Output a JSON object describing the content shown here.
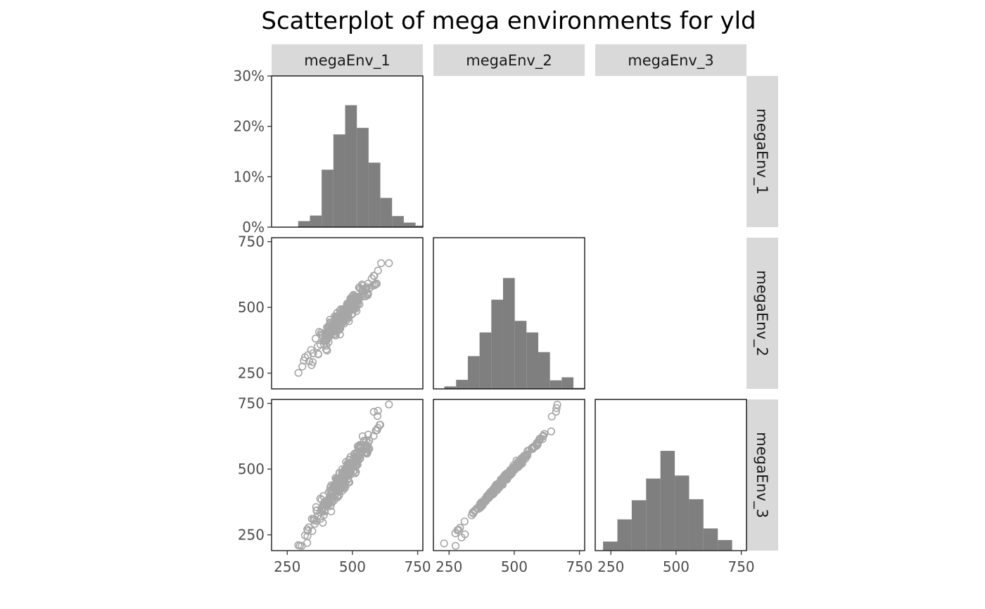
{
  "title": "Scatterplot of mega environments for yld",
  "colors": {
    "bar": "#7f7f7f",
    "point": "#a6a6a6",
    "strip": "#d9d9d9",
    "frame": "#000000"
  },
  "chart_data": {
    "type": "scatter",
    "layout": "pairs-matrix-lower-triangle",
    "variables": [
      "megaEnv_1",
      "megaEnv_2",
      "megaEnv_3"
    ],
    "column_strips": [
      "megaEnv_1",
      "megaEnv_2",
      "megaEnv_3"
    ],
    "row_strips": [
      "megaEnv_1",
      "megaEnv_2",
      "megaEnv_3"
    ],
    "x_ticks": [
      "250",
      "500",
      "750"
    ],
    "y_ticks_value": [
      "250",
      "500",
      "750"
    ],
    "y_ticks_percent": [
      "0%",
      "10%",
      "20%",
      "30%"
    ],
    "xlim": [
      190,
      770
    ],
    "ylim": [
      190,
      765
    ],
    "percent_ylim": [
      0,
      30
    ],
    "grid": false,
    "histograms": [
      {
        "variable": "megaEnv_1",
        "bin_width": 45,
        "bins": [
          {
            "x0": 292,
            "x1": 337,
            "pct": 1.2
          },
          {
            "x0": 337,
            "x1": 382,
            "pct": 2.3
          },
          {
            "x0": 382,
            "x1": 427,
            "pct": 11.4
          },
          {
            "x0": 427,
            "x1": 472,
            "pct": 18.4
          },
          {
            "x0": 472,
            "x1": 517,
            "pct": 24.2
          },
          {
            "x0": 517,
            "x1": 562,
            "pct": 19.7
          },
          {
            "x0": 562,
            "x1": 607,
            "pct": 12.8
          },
          {
            "x0": 607,
            "x1": 652,
            "pct": 5.8
          },
          {
            "x0": 652,
            "x1": 697,
            "pct": 2.2
          },
          {
            "x0": 697,
            "x1": 742,
            "pct": 0.9
          },
          {
            "x0": 742,
            "x1": 787,
            "pct": 0.3
          }
        ]
      },
      {
        "variable": "megaEnv_2",
        "bin_width": 45,
        "bins": [
          {
            "x0": 232,
            "x1": 277,
            "pct": 0.5
          },
          {
            "x0": 277,
            "x1": 322,
            "pct": 1.8
          },
          {
            "x0": 322,
            "x1": 367,
            "pct": 6.5
          },
          {
            "x0": 367,
            "x1": 412,
            "pct": 11.2
          },
          {
            "x0": 412,
            "x1": 457,
            "pct": 17.7
          },
          {
            "x0": 457,
            "x1": 502,
            "pct": 22.0
          },
          {
            "x0": 502,
            "x1": 547,
            "pct": 13.5
          },
          {
            "x0": 547,
            "x1": 592,
            "pct": 11.2
          },
          {
            "x0": 592,
            "x1": 637,
            "pct": 7.3
          },
          {
            "x0": 637,
            "x1": 682,
            "pct": 1.7
          },
          {
            "x0": 682,
            "x1": 727,
            "pct": 2.3
          },
          {
            "x0": 727,
            "x1": 772,
            "pct": 0.2
          }
        ]
      },
      {
        "variable": "megaEnv_3",
        "bin_width": 55,
        "bins": [
          {
            "x0": 220,
            "x1": 275,
            "pct": 1.8
          },
          {
            "x0": 275,
            "x1": 330,
            "pct": 6.2
          },
          {
            "x0": 330,
            "x1": 385,
            "pct": 10.0
          },
          {
            "x0": 385,
            "x1": 440,
            "pct": 14.3
          },
          {
            "x0": 440,
            "x1": 495,
            "pct": 19.8
          },
          {
            "x0": 495,
            "x1": 550,
            "pct": 14.9
          },
          {
            "x0": 550,
            "x1": 605,
            "pct": 10.2
          },
          {
            "x0": 605,
            "x1": 660,
            "pct": 4.4
          },
          {
            "x0": 660,
            "x1": 715,
            "pct": 2.1
          }
        ]
      }
    ],
    "scatter_panels": [
      {
        "x_variable": "megaEnv_1",
        "y_variable": "megaEnv_2",
        "point_count": 260,
        "x_mean": 460,
        "x_sd": 55,
        "slope": 1.18,
        "residual_sd": 19,
        "extreme_points": [
          [
            308,
            275
          ],
          [
            318,
            310
          ],
          [
            329,
            318
          ],
          [
            610,
            668
          ],
          [
            640,
            668
          ],
          [
            598,
            640
          ],
          [
            574,
            610
          ]
        ]
      },
      {
        "x_variable": "megaEnv_1",
        "y_variable": "megaEnv_3",
        "point_count": 260,
        "x_mean": 460,
        "x_sd": 55,
        "slope": 1.42,
        "residual_sd": 23,
        "extreme_points": [
          [
            306,
            208
          ],
          [
            318,
            248
          ],
          [
            329,
            265
          ],
          [
            640,
            746
          ],
          [
            598,
            722
          ],
          [
            582,
            718
          ],
          [
            596,
            702
          ]
        ]
      },
      {
        "x_variable": "megaEnv_2",
        "y_variable": "megaEnv_3",
        "point_count": 260,
        "x_mean": 462,
        "x_sd": 70,
        "slope": 1.08,
        "residual_sd": 6,
        "extreme_points": [
          [
            275,
            208
          ],
          [
            298,
            240
          ],
          [
            311,
            252
          ],
          [
            665,
            745
          ],
          [
            662,
            732
          ],
          [
            660,
            718
          ],
          [
            644,
            700
          ]
        ]
      }
    ]
  }
}
